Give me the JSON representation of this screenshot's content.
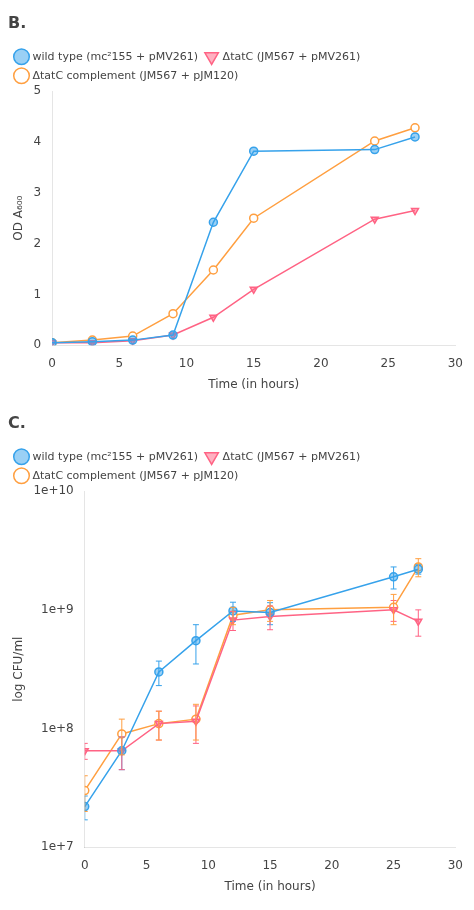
{
  "chart_data": [
    {
      "type": "line",
      "title": "B.",
      "xlabel": "Time (in hours)",
      "ylabel": "OD A₆₀₀",
      "x": [
        0,
        3,
        6,
        9,
        12,
        15,
        24,
        27
      ],
      "series": [
        {
          "name": "wild type (mc²155 + pMV261)",
          "marker": "circle",
          "values": [
            0.05,
            0.07,
            0.1,
            0.2,
            2.42,
            3.82,
            3.85,
            4.1
          ]
        },
        {
          "name": "ΔtatC (JM567 + pMV261)",
          "marker": "triangle_down",
          "values": [
            0.05,
            0.05,
            0.09,
            0.2,
            0.55,
            1.1,
            2.48,
            2.65
          ]
        },
        {
          "name": "ΔtatC complement (JM567 + pJM120)",
          "marker": "circle_open",
          "values": [
            0.05,
            0.1,
            0.18,
            0.62,
            1.48,
            2.5,
            4.02,
            4.28
          ]
        }
      ],
      "xlim": [
        0,
        30
      ],
      "xticks": [
        0,
        5,
        10,
        15,
        20,
        25,
        30
      ],
      "ylim": [
        0,
        5
      ],
      "yticks": [
        0,
        1,
        2,
        3,
        4,
        5
      ],
      "grid": false,
      "legend": "upper left"
    },
    {
      "type": "line",
      "title": "C.",
      "xlabel": "Time (in hours)",
      "ylabel": "log CFU/ml",
      "log": "y",
      "x": [
        0,
        3,
        6,
        9,
        12,
        15,
        25,
        27
      ],
      "series": [
        {
          "name": "wild type (mc²155 + pMV261)",
          "marker": "circle",
          "values": [
            22000000.0,
            65000000.0,
            300000000.0,
            550000000.0,
            980000000.0,
            950000000.0,
            1900000000.0,
            2200000000.0
          ],
          "errors": [
            5000000.0,
            20000000.0,
            70000000.0,
            200000000.0,
            180000000.0,
            200000000.0,
            400000000.0,
            200000000.0
          ]
        },
        {
          "name": "ΔtatC (JM567 + pMV261)",
          "marker": "triangle_down",
          "values": [
            65000000.0,
            65000000.0,
            110000000.0,
            115000000.0,
            820000000.0,
            880000000.0,
            1000000000.0,
            800000000.0
          ],
          "errors": [
            10000000.0,
            20000000.0,
            30000000.0,
            40000000.0,
            150000000.0,
            200000000.0,
            200000000.0,
            200000000.0
          ]
        },
        {
          "name": "ΔtatC complement (JM567 + pJM120)",
          "marker": "circle_open",
          "values": [
            30000000.0,
            90000000.0,
            110000000.0,
            120000000.0,
            900000000.0,
            1000000000.0,
            1050000000.0,
            2300000000.0
          ],
          "errors": [
            10000000.0,
            30000000.0,
            30000000.0,
            40000000.0,
            150000000.0,
            200000000.0,
            300000000.0,
            400000000.0
          ]
        }
      ],
      "xlim": [
        0,
        30
      ],
      "xticks": [
        0,
        5,
        10,
        15,
        20,
        25,
        30
      ],
      "ylim": [
        10000000,
        10000000000
      ],
      "yticks": [
        {
          "value": 10000000,
          "label": "1e+7"
        },
        {
          "value": 100000000,
          "label": "1e+8"
        },
        {
          "value": 1000000000,
          "label": "1e+9"
        },
        {
          "value": 10000000000,
          "label": "1e+10"
        }
      ],
      "grid": false,
      "legend": "upper left"
    }
  ]
}
